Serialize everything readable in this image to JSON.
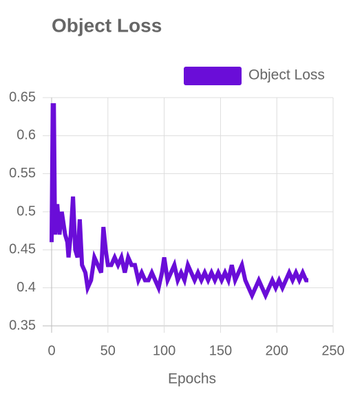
{
  "chart_data": {
    "type": "line",
    "title": "Object Loss",
    "xlabel": "Epochs",
    "x": [
      0,
      1,
      2,
      3,
      5,
      7,
      9,
      12,
      14,
      15,
      17,
      19,
      21,
      23,
      25,
      27,
      30,
      32,
      35,
      38,
      41,
      44,
      46,
      48,
      50,
      53,
      56,
      59,
      62,
      65,
      68,
      71,
      74,
      77,
      80,
      83,
      86,
      89,
      92,
      95,
      98,
      100,
      103,
      106,
      109,
      112,
      115,
      118,
      121,
      124,
      127,
      130,
      133,
      136,
      139,
      142,
      145,
      148,
      151,
      154,
      157,
      160,
      163,
      166,
      169,
      172,
      175,
      178,
      181,
      184,
      187,
      190,
      193,
      196,
      199,
      202,
      205,
      208,
      211,
      214,
      217,
      220,
      223,
      226,
      228
    ],
    "series": [
      {
        "name": "Object Loss",
        "color": "#6a0dd8",
        "values": [
          0.46,
          0.64,
          0.64,
          0.47,
          0.51,
          0.47,
          0.5,
          0.47,
          0.46,
          0.44,
          0.47,
          0.52,
          0.45,
          0.44,
          0.49,
          0.43,
          0.42,
          0.4,
          0.41,
          0.44,
          0.43,
          0.42,
          0.48,
          0.45,
          0.43,
          0.43,
          0.44,
          0.43,
          0.44,
          0.42,
          0.44,
          0.43,
          0.43,
          0.41,
          0.42,
          0.41,
          0.41,
          0.42,
          0.41,
          0.4,
          0.42,
          0.44,
          0.41,
          0.42,
          0.43,
          0.41,
          0.42,
          0.41,
          0.43,
          0.42,
          0.41,
          0.42,
          0.41,
          0.42,
          0.41,
          0.42,
          0.41,
          0.42,
          0.41,
          0.42,
          0.41,
          0.43,
          0.41,
          0.42,
          0.43,
          0.41,
          0.4,
          0.39,
          0.4,
          0.41,
          0.4,
          0.39,
          0.4,
          0.41,
          0.4,
          0.41,
          0.4,
          0.41,
          0.42,
          0.41,
          0.42,
          0.41,
          0.42,
          0.41,
          0.41
        ]
      }
    ],
    "xlim": [
      0,
      250
    ],
    "xticks": [
      0,
      50,
      100,
      150,
      200,
      250
    ],
    "ylim": [
      0.35,
      0.65
    ],
    "yticks": [
      0.35,
      0.4,
      0.45,
      0.5,
      0.55,
      0.6,
      0.65
    ],
    "grid": true,
    "legend": "top-right"
  }
}
